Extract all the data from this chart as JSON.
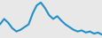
{
  "values": [
    55,
    65,
    58,
    48,
    42,
    45,
    50,
    55,
    75,
    90,
    95,
    85,
    72,
    65,
    70,
    62,
    55,
    50,
    45,
    42,
    44,
    40,
    42,
    38,
    40,
    36
  ],
  "line_color": "#2090c8",
  "bg_color": "#e8e8e8",
  "linewidth": 1.5,
  "ylim": [
    30,
    100
  ]
}
